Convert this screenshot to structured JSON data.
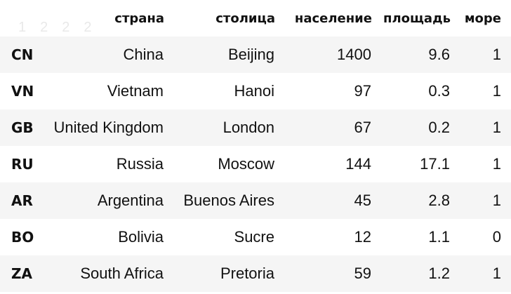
{
  "table": {
    "columns": [
      "страна",
      "столица",
      "население",
      "площадь",
      "море"
    ],
    "rows": [
      {
        "index": "CN",
        "country": "China",
        "capital": "Beijing",
        "population": "1400",
        "area": "9.6",
        "sea": "1"
      },
      {
        "index": "VN",
        "country": "Vietnam",
        "capital": "Hanoi",
        "population": "97",
        "area": "0.3",
        "sea": "1"
      },
      {
        "index": "GB",
        "country": "United Kingdom",
        "capital": "London",
        "population": "67",
        "area": "0.2",
        "sea": "1"
      },
      {
        "index": "RU",
        "country": "Russia",
        "capital": "Moscow",
        "population": "144",
        "area": "17.1",
        "sea": "1"
      },
      {
        "index": "AR",
        "country": "Argentina",
        "capital": "Buenos Aires",
        "population": "45",
        "area": "2.8",
        "sea": "1"
      },
      {
        "index": "BO",
        "country": "Bolivia",
        "capital": "Sucre",
        "population": "12",
        "area": "1.1",
        "sea": "0"
      },
      {
        "index": "ZA",
        "country": "South Africa",
        "capital": "Pretoria",
        "population": "59",
        "area": "1.2",
        "sea": "1"
      }
    ]
  }
}
